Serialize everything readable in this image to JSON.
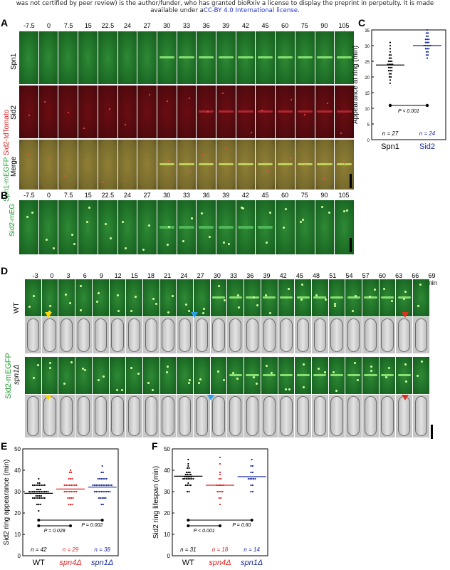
{
  "notice": {
    "line1": "was not certified by peer review) is the author/funder, who has granted bioRxiv a license to display the preprint in perpetuity. It is made",
    "line2_prefix": "available under a",
    "line2_link": "CC-BY 4.0 International license",
    "line2_suffix": "."
  },
  "panelA": {
    "label": "A",
    "times": [
      "-7.5",
      "0",
      "7.5",
      "15",
      "22.5",
      "24",
      "27",
      "30",
      "33",
      "36",
      "39",
      "42",
      "45",
      "60",
      "75",
      "90",
      "105 min"
    ],
    "side_label_green": "Spn1-mEGFP",
    "side_label_red": "Sid2-tdTomato",
    "rows": [
      "Spn1",
      "Sid2",
      "Merge"
    ]
  },
  "panelB": {
    "label": "B",
    "times": [
      "-7.5",
      "0",
      "7.5",
      "15",
      "22.5",
      "24",
      "27",
      "30",
      "33",
      "36",
      "39",
      "42",
      "45",
      "60",
      "75",
      "90",
      "105 min"
    ],
    "side_label": "Sid2-mEG"
  },
  "panelC": {
    "label": "C",
    "ylabel": "Appearance at ring (min)",
    "yticks": [
      "0",
      "5",
      "10",
      "15",
      "20",
      "25",
      "30",
      "35"
    ],
    "categories": [
      "Spn1",
      "Sid2"
    ],
    "pvalue": "P < 0.001",
    "counts": [
      "n = 27",
      "n = 24"
    ]
  },
  "panelD": {
    "label": "D",
    "times": [
      "-3",
      "0",
      "3",
      "6",
      "9",
      "12",
      "15",
      "18",
      "21",
      "24",
      "27",
      "30",
      "33",
      "36",
      "39",
      "42",
      "45",
      "48",
      "51",
      "54",
      "57",
      "60",
      "63",
      "66",
      "69 min"
    ],
    "side_label": "Sid2-mEGFP",
    "row_wt": "WT",
    "row_mut": "spn1Δ"
  },
  "panelE": {
    "label": "E",
    "ylabel": "Sid2 ring appearance (min)",
    "yticks": [
      "0",
      "10",
      "20",
      "30",
      "40",
      "50"
    ],
    "categories": [
      "WT",
      "spn4Δ",
      "spn1Δ"
    ],
    "p1": "P = 0.028",
    "p2": "P = 0.002",
    "counts": [
      "n = 42",
      "n = 29",
      "n = 38"
    ]
  },
  "panelF": {
    "label": "F",
    "ylabel": "Sid2 ring lifespan (min)",
    "yticks": [
      "0",
      "10",
      "20",
      "30",
      "40",
      "50"
    ],
    "categories": [
      "WT",
      "spn4Δ",
      "spn1Δ"
    ],
    "p1": "P < 0.001",
    "p2": "P = 0.60",
    "counts": [
      "n = 31",
      "n = 18",
      "n = 14"
    ]
  },
  "colors": {
    "wt": "#000000",
    "spn4": "#e02020",
    "spn1": "#1a2a99",
    "green_label": "#1f9a2f",
    "red_label": "#d81f1f"
  },
  "chart_data": [
    {
      "type": "scatter",
      "title": "",
      "xlabel": "",
      "ylabel": "Appearance at ring (min)",
      "ylim": [
        0,
        35
      ],
      "categories": [
        "Spn1",
        "Sid2"
      ],
      "series": [
        {
          "name": "Spn1",
          "values": [
            18,
            19,
            20,
            20,
            21,
            21,
            22,
            22,
            22,
            23,
            23,
            23,
            24,
            24,
            24,
            24,
            25,
            25,
            25,
            26,
            26,
            27,
            27,
            28,
            29,
            30,
            31
          ],
          "mean": 23.8
        },
        {
          "name": "Sid2",
          "values": [
            26,
            27,
            27,
            28,
            28,
            29,
            29,
            29,
            30,
            30,
            30,
            30,
            30,
            31,
            31,
            31,
            32,
            32,
            32,
            33,
            33,
            34,
            34,
            35
          ],
          "mean": 30.0
        }
      ]
    },
    {
      "type": "scatter",
      "title": "",
      "xlabel": "",
      "ylabel": "Sid2 ring appearance (min)",
      "ylim": [
        0,
        50
      ],
      "categories": [
        "WT",
        "spn4Δ",
        "spn1Δ"
      ],
      "series": [
        {
          "name": "WT",
          "values": [
            21,
            24,
            24,
            24,
            27,
            27,
            27,
            27,
            27,
            27,
            27,
            27,
            28,
            28,
            28,
            28,
            30,
            30,
            30,
            30,
            30,
            30,
            30,
            30,
            30,
            30,
            30,
            30,
            31,
            31,
            31,
            33,
            33,
            33,
            33,
            33,
            33,
            33,
            33,
            34,
            34,
            36
          ],
          "mean": 29.2
        },
        {
          "name": "spn4Δ",
          "values": [
            24,
            24,
            24,
            27,
            27,
            27,
            27,
            30,
            30,
            30,
            30,
            30,
            30,
            30,
            30,
            33,
            33,
            33,
            33,
            33,
            33,
            33,
            33,
            36,
            36,
            36,
            39,
            39,
            40
          ],
          "mean": 31.2
        },
        {
          "name": "spn1Δ",
          "values": [
            24,
            24,
            27,
            27,
            27,
            27,
            27,
            30,
            30,
            30,
            30,
            30,
            30,
            30,
            30,
            30,
            30,
            33,
            33,
            33,
            33,
            33,
            33,
            33,
            33,
            33,
            33,
            33,
            33,
            36,
            36,
            36,
            36,
            36,
            36,
            39,
            39,
            42
          ],
          "mean": 32.1
        }
      ]
    },
    {
      "type": "scatter",
      "title": "",
      "xlabel": "",
      "ylabel": "Sid2 ring lifespan (min)",
      "ylim": [
        0,
        50
      ],
      "categories": [
        "WT",
        "spn4Δ",
        "spn1Δ"
      ],
      "series": [
        {
          "name": "WT",
          "values": [
            30,
            30,
            33,
            33,
            33,
            33,
            34,
            36,
            36,
            36,
            36,
            36,
            36,
            36,
            37,
            37,
            37,
            37,
            37,
            38,
            38,
            38,
            38,
            39,
            39,
            39,
            41,
            41,
            42,
            43,
            45
          ],
          "mean": 37.2
        },
        {
          "name": "spn4Δ",
          "values": [
            24,
            27,
            27,
            30,
            30,
            30,
            30,
            33,
            33,
            33,
            33,
            33,
            36,
            36,
            38,
            39,
            43,
            46
          ],
          "mean": 33.0
        },
        {
          "name": "spn1Δ",
          "values": [
            30,
            30,
            33,
            33,
            36,
            36,
            36,
            36,
            36,
            39,
            39,
            42,
            42,
            45
          ],
          "mean": 37.0
        }
      ]
    }
  ]
}
